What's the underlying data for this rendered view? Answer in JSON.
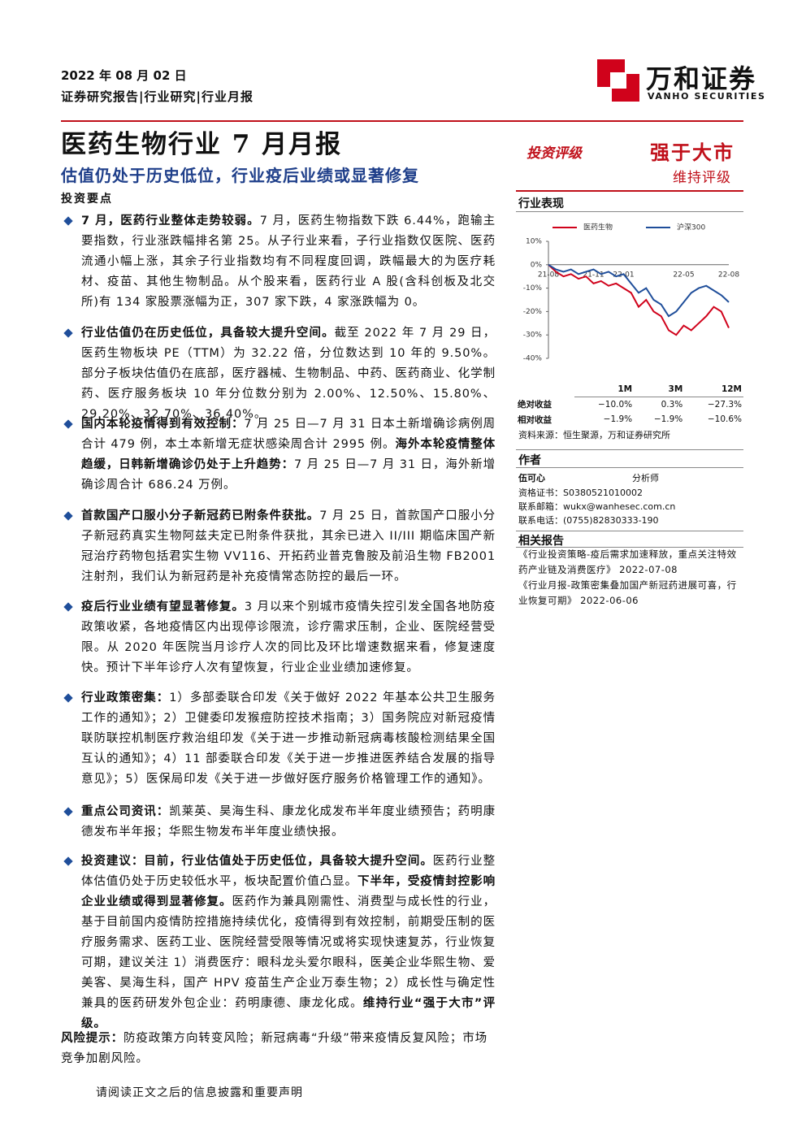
{
  "header": {
    "date": "2022 年 08 月 02 日",
    "breadcrumb": "证券研究报告|行业研究|行业月报",
    "logo": "万和证券",
    "logo_en": "VANHO SECURITIES"
  },
  "title": "医药生物行业 7 月月报",
  "subtitle": "估值仍处于历史低位，行业疫后业绩或显著修复",
  "section": "投资要点",
  "bullets": [
    {
      "segments": [
        {
          "text": "7 月，医药行业整体走势较弱。",
          "bold": true
        },
        {
          "text": "7 月，医药生物指数下跌 6.44%，跑输主要指数，行业涨跌幅排名第 25。从子行业来看，子行业指数仅医院、医药流通小幅上涨，其余子行业指数均有不同程度回调，跌幅最大的为医疗耗材、疫苗、其他生物制品。从个股来看，医药行业 A 股(含科创板及北交所)有 134 家股票涨幅为正，307 家下跌，4 家涨跌幅为 0。",
          "bold": false
        }
      ]
    },
    {
      "segments": [
        {
          "text": "行业估值仍在历史低位，具备较大提升空间。",
          "bold": true
        },
        {
          "text": "截至 2022 年 7 月 29 日，医药生物板块 PE（TTM）为 32.22 倍，分位数达到 10 年的 9.50%。部分子板块估值仍在底部，医疗器械、生物制品、中药、医药商业、化学制药、医疗服务板块 10 年分位数分别为 2.00%、12.50%、15.80%、29.20%、32.70%、36.40%。",
          "bold": false
        }
      ]
    },
    {
      "segments": [
        {
          "text": "国内本轮疫情得到有效控制：",
          "bold": true
        },
        {
          "text": "7 月 25 日—7 月 31 日本土新增确诊病例周合计 479 例，本土本新增无症状感染周合计 2995 例。",
          "bold": false
        },
        {
          "text": "海外本轮疫情整体趋缓，日韩新增确诊仍处于上升趋势：",
          "bold": true
        },
        {
          "text": "7 月 25 日—7 月 31 日，海外新增确诊周合计 686.24 万例。",
          "bold": false
        }
      ]
    },
    {
      "segments": [
        {
          "text": "首款国产口服小分子新冠药已附条件获批。",
          "bold": true
        },
        {
          "text": "7 月 25 日，首款国产口服小分子新冠药真实生物阿兹夫定已附条件获批，其余已进入 II/III 期临床国产新冠治疗药物包括君实生物 VV116、开拓药业普克鲁胺及前沿生物 FB2001 注射剂，我们认为新冠药是补充疫情常态防控的最后一环。",
          "bold": false
        }
      ]
    },
    {
      "segments": [
        {
          "text": "疫后行业业绩有望显著修复。",
          "bold": true
        },
        {
          "text": "3 月以来个别城市疫情失控引发全国各地防疫政策收紧，各地疫情区内出现停诊限流，诊疗需求压制，企业、医院经营受限。从 2020 年医院当月诊疗人次的同比及环比增速数据来看，修复速度快。预计下半年诊疗人次有望恢复，行业企业业绩加速修复。",
          "bold": false
        }
      ]
    },
    {
      "segments": [
        {
          "text": "行业政策密集：",
          "bold": true
        },
        {
          "text": "1）多部委联合印发《关于做好 2022 年基本公共卫生服务工作的通知》；2）卫健委印发猴痘防控技术指南；3）国务院应对新冠疫情联防联控机制医疗救治组印发《关于进一步推动新冠病毒核酸检测结果全国互认的通知》；4）11 部委联合印发《关于进一步推进医养结合发展的指导意见》；5）医保局印发《关于进一步做好医疗服务价格管理工作的通知》。",
          "bold": false
        }
      ]
    },
    {
      "segments": [
        {
          "text": "重点公司资讯：",
          "bold": true
        },
        {
          "text": "凯莱英、昊海生科、康龙化成发布半年度业绩预告；药明康德发布半年报；华熙生物发布半年度业绩快报。",
          "bold": false
        }
      ]
    },
    {
      "segments": [
        {
          "text": "投资建议：目前，行业估值处于历史低位，具备较大提升空间。",
          "bold": true
        },
        {
          "text": "医药行业整体估值仍处于历史较低水平，板块配置价值凸显。",
          "bold": false
        },
        {
          "text": "下半年，受疫情封控影响企业业绩或得到显著修复。",
          "bold": true
        },
        {
          "text": "医药作为兼具刚需性、消费型与成长性的行业，基于目前国内疫情防控措施持续优化，疫情得到有效控制，前期受压制的医疗服务需求、医药工业、医院经营受限等情况或将实现快速复苏，行业恢复可期，建议关注 1）消费医疗：眼科龙头爱尔眼科，医美企业华熙生物、爱美客、昊海生科，国产 HPV 疫苗生产企业万泰生物；2）成长性与确定性兼具的医药研发外包企业：药明康德、康龙化成。",
          "bold": false
        },
        {
          "text": "维持行业“强于大市”评级。",
          "bold": true
        }
      ]
    }
  ],
  "risk": {
    "label": "风险提示：",
    "text": "防疫政策方向转变风险；新冠病毒“升级”带来疫情反复风险；市场竞争加剧风险。"
  },
  "footer": "请阅读正文之后的信息披露和重要声明",
  "rating": {
    "label": "投资评级",
    "value": "强于大市",
    "note": "维持评级"
  },
  "performance_title": "行业表现",
  "chart_data": {
    "type": "line",
    "categories": [
      "21-08",
      null,
      null,
      null,
      null,
      null,
      "21-11",
      null,
      null,
      null,
      "22-01",
      null,
      null,
      null,
      null,
      null,
      null,
      null,
      "22-05",
      null,
      null,
      null,
      null,
      null,
      "22-08"
    ],
    "series": [
      {
        "name": "医药生物",
        "color": "#d0021b",
        "values": [
          0,
          -3,
          -5,
          -4,
          -6,
          -5,
          -8,
          -7,
          -9,
          -8,
          -10,
          -12,
          -18,
          -15,
          -20,
          -22,
          -28,
          -30,
          -26,
          -28,
          -25,
          -22,
          -18,
          -20,
          -27
        ]
      },
      {
        "name": "沪深300",
        "color": "#1f4e9a",
        "values": [
          0,
          -2,
          -3,
          -2,
          -4,
          -3,
          -2,
          -4,
          -3,
          -5,
          -4,
          -8,
          -12,
          -10,
          -15,
          -17,
          -22,
          -20,
          -16,
          -12,
          -10,
          -9,
          -11,
          -13,
          -16
        ]
      }
    ],
    "ylim": [
      -40,
      10
    ],
    "yticks": [
      {
        "value": 10,
        "label": "10%"
      },
      {
        "value": 0,
        "label": "0%"
      },
      {
        "value": -10,
        "label": "-10%"
      },
      {
        "value": -20,
        "label": "-20%"
      },
      {
        "value": -30,
        "label": "-30%"
      },
      {
        "value": -40,
        "label": "-40%"
      }
    ]
  },
  "returns_table": {
    "columns": [
      "1M",
      "3M",
      "12M"
    ],
    "rows": [
      {
        "label": "绝对收益",
        "cells": [
          "−10.0%",
          "0.3%",
          "−27.3%"
        ]
      },
      {
        "label": "相对收益",
        "cells": [
          "−1.9%",
          "−1.9%",
          "−10.6%"
        ]
      }
    ],
    "source": "资料来源：恒生聚源，万和证券研究所"
  },
  "author": {
    "heading": "作者",
    "name": "伍可心",
    "role": "分析师",
    "lines": [
      "资格证书：S0380521010002",
      "联系邮箱：wukx@wanhesec.com.cn",
      "联系电话：(0755)82830333-190"
    ]
  },
  "related": {
    "heading": "相关报告",
    "items": [
      {
        "title": "《行业投资策略-疫后需求加速释放，重点关注特效药产业链及消费医疗》",
        "date": "2022-07-08"
      },
      {
        "title": "《行业月报-政策密集叠加国产新冠药进展可喜，行业恢复可期》",
        "date": "2022-06-06"
      }
    ]
  }
}
